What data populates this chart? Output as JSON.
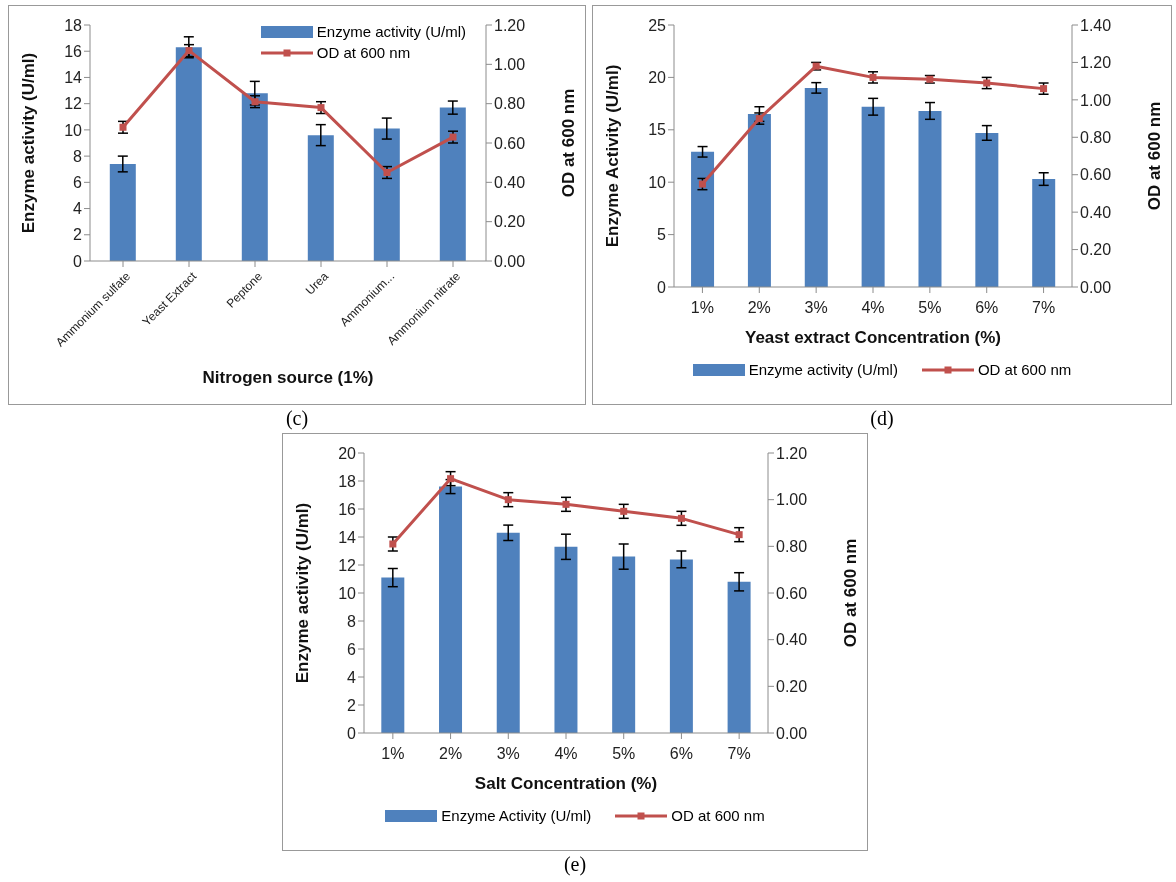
{
  "chart_data": [
    {
      "type": "bar",
      "categories": [
        "Ammonium sulfate",
        "Yeast Extract",
        "Peptone",
        "Urea",
        "Ammonium...",
        "Ammonium nitrate"
      ],
      "xlabel": "Nitrogen source (1%)",
      "ylabel": "Enzyme activity (U/ml)",
      "y2label": "OD at 600 nm",
      "ylim": [
        0,
        18
      ],
      "yticks": [
        0,
        2,
        4,
        6,
        8,
        10,
        12,
        14,
        16,
        18
      ],
      "y2lim": [
        0,
        1.2
      ],
      "y2ticks": [
        {
          "value": 0,
          "label": "0.00"
        },
        {
          "value": 0.2,
          "label": "0.20"
        },
        {
          "value": 0.4,
          "label": "0.40"
        },
        {
          "value": 0.6,
          "label": "0.60"
        },
        {
          "value": 0.8,
          "label": "0.80"
        },
        {
          "value": 1,
          "label": "1.00"
        },
        {
          "value": 1.2,
          "label": "1.20"
        }
      ],
      "legend": "top right",
      "marker": "square",
      "line_style": "solid",
      "annotations": [
        "(c)"
      ],
      "series": [
        {
          "name": "Enzyme activity (U/ml)",
          "color": "#4f81bd",
          "values": [
            7.4,
            16.3,
            12.8,
            9.6,
            10.1,
            11.7
          ],
          "errors": [
            0.6,
            0.8,
            0.9,
            0.8,
            0.8,
            0.5
          ]
        },
        {
          "name": "OD at 600 nm",
          "type": "line",
          "axis": "y2",
          "color": "#c0504d",
          "values": [
            0.68,
            1.07,
            0.81,
            0.78,
            0.45,
            0.63
          ],
          "errors": [
            0.03,
            0.03,
            0.03,
            0.03,
            0.03,
            0.03
          ]
        }
      ]
    },
    {
      "type": "bar",
      "categories": [
        "1%",
        "2%",
        "3%",
        "4%",
        "5%",
        "6%",
        "7%"
      ],
      "xlabel": "Yeast extract Concentration (%)",
      "ylabel": "Enzyme Activity (U/ml)",
      "y2label": "OD at 600 nm",
      "ylim": [
        0,
        25
      ],
      "yticks": [
        0,
        5,
        10,
        15,
        20,
        25
      ],
      "y2lim": [
        0,
        1.4
      ],
      "y2ticks": [
        {
          "value": 0,
          "label": "0.00"
        },
        {
          "value": 0.2,
          "label": "0.20"
        },
        {
          "value": 0.4,
          "label": "0.40"
        },
        {
          "value": 0.6,
          "label": "0.60"
        },
        {
          "value": 0.8,
          "label": "0.80"
        },
        {
          "value": 1,
          "label": "1.00"
        },
        {
          "value": 1.2,
          "label": "1.20"
        },
        {
          "value": 1.4,
          "label": "1.40"
        }
      ],
      "legend": "bottom",
      "marker": "square",
      "line_style": "solid",
      "annotations": [
        "(d)"
      ],
      "series": [
        {
          "name": "Enzyme activity (U/ml)",
          "color": "#4f81bd",
          "values": [
            12.9,
            16.5,
            19.0,
            17.2,
            16.8,
            14.7,
            10.3
          ],
          "errors": [
            0.5,
            0.7,
            0.5,
            0.8,
            0.8,
            0.7,
            0.6
          ]
        },
        {
          "name": "OD at 600 nm",
          "type": "line",
          "axis": "y2",
          "color": "#c0504d",
          "values": [
            0.55,
            0.9,
            1.18,
            1.12,
            1.11,
            1.09,
            1.06
          ],
          "errors": [
            0.03,
            0.03,
            0.02,
            0.03,
            0.02,
            0.03,
            0.03
          ]
        }
      ]
    },
    {
      "type": "bar",
      "categories": [
        "1%",
        "2%",
        "3%",
        "4%",
        "5%",
        "6%",
        "7%"
      ],
      "xlabel": "Salt Concentration (%)",
      "ylabel": "Enzyme activity (U/ml)",
      "y2label": "OD at 600 nm",
      "ylim": [
        0,
        20
      ],
      "yticks": [
        0,
        2,
        4,
        6,
        8,
        10,
        12,
        14,
        16,
        18,
        20
      ],
      "y2lim": [
        0,
        1.2
      ],
      "y2ticks": [
        {
          "value": 0,
          "label": "0.00"
        },
        {
          "value": 0.2,
          "label": "0.20"
        },
        {
          "value": 0.4,
          "label": "0.40"
        },
        {
          "value": 0.6,
          "label": "0.60"
        },
        {
          "value": 0.8,
          "label": "0.80"
        },
        {
          "value": 1,
          "label": "1.00"
        },
        {
          "value": 1.2,
          "label": "1.20"
        }
      ],
      "legend": "bottom",
      "marker": "square",
      "line_style": "solid",
      "annotations": [
        "(e)"
      ],
      "series": [
        {
          "name": "Enzyme Activity (U/ml)",
          "color": "#4f81bd",
          "values": [
            11.1,
            17.6,
            14.3,
            13.3,
            12.6,
            12.4,
            10.8
          ],
          "errors": [
            0.65,
            0.5,
            0.55,
            0.9,
            0.9,
            0.6,
            0.65
          ]
        },
        {
          "name": "OD at 600 nm",
          "type": "line",
          "axis": "y2",
          "color": "#c0504d",
          "values": [
            0.81,
            1.09,
            1.0,
            0.98,
            0.95,
            0.92,
            0.85
          ],
          "errors": [
            0.03,
            0.03,
            0.03,
            0.03,
            0.03,
            0.03,
            0.03
          ]
        }
      ]
    }
  ]
}
